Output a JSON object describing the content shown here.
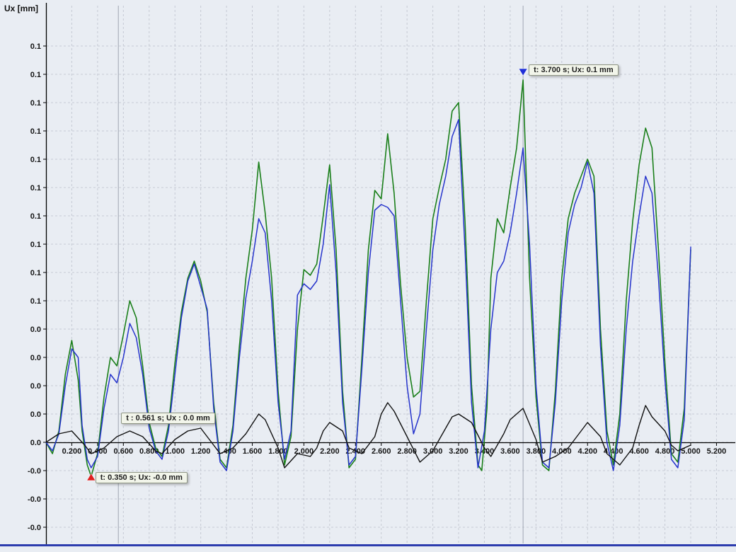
{
  "axis_title": "Ux [mm]",
  "colors": {
    "background": "#e9edf3",
    "grid": "#c6cad4",
    "cursor_line": "#9fa6b2",
    "axis": "#000000",
    "bottom_bar": "#2c3cae",
    "annotation_bg": "#f2f5ea"
  },
  "annotations": [
    {
      "text": "t: 3.700 s; Ux: 0.1 mm",
      "t": 3.7,
      "v": 0.131,
      "marker": "down",
      "marker_color": "#2030d8"
    },
    {
      "text": "t : 0.561 s; Ux : 0.0 mm",
      "t": 0.561,
      "v": 0.008,
      "marker": "none",
      "marker_color": ""
    },
    {
      "text": "t: 0.350 s; Ux: -0.0 mm",
      "t": 0.35,
      "v": -0.012,
      "marker": "up",
      "marker_color": "#e02020"
    }
  ],
  "chart_data": {
    "type": "line",
    "title": "",
    "xlabel": "",
    "ylabel": "Ux [mm]",
    "xlim": [
      0.0,
      5.35
    ],
    "ylim": [
      -0.036,
      0.149
    ],
    "grid": "dashed",
    "legend": "none",
    "cursor_lines": [
      0.561,
      3.7
    ],
    "x_ticks": {
      "values": [
        0.2,
        0.4,
        0.6,
        0.8,
        1.0,
        1.2,
        1.4,
        1.6,
        1.8,
        2.0,
        2.2,
        2.4,
        2.6,
        2.8,
        3.0,
        3.2,
        3.4,
        3.6,
        3.8,
        4.0,
        4.2,
        4.4,
        4.6,
        4.8,
        5.0,
        5.2
      ],
      "labels": [
        "0.200",
        "0.400",
        "0.600",
        "0.800",
        "1.000",
        "1.200",
        "1.400",
        "1.600",
        "1.800",
        "2.000",
        "2.200",
        "2.400",
        "2.600",
        "2.800",
        "3.000",
        "3.200",
        "3.400",
        "3.600",
        "3.800",
        "4.000",
        "4.200",
        "4.400",
        "4.600",
        "4.800",
        "5.000",
        "5.200"
      ]
    },
    "y_ticks": {
      "values": [
        0.14,
        0.13,
        0.12,
        0.11,
        0.1,
        0.09,
        0.08,
        0.07,
        0.06,
        0.05,
        0.04,
        0.03,
        0.02,
        0.01,
        0.0,
        -0.01,
        -0.02,
        -0.03
      ],
      "labels": [
        "0.1",
        "0.1",
        "0.1",
        "0.1",
        "0.1",
        "0.1",
        "0.1",
        "0.1",
        "0.1",
        "0.1",
        "0.0",
        "0.0",
        "0.0",
        "0.0",
        "0.0",
        "-0.0",
        "-0.0",
        "-0.0"
      ]
    },
    "series": [
      {
        "name": "series-green",
        "color": "#1a7f1a",
        "width": 1.6,
        "points": [
          [
            0.0,
            0.0
          ],
          [
            0.05,
            -0.004
          ],
          [
            0.1,
            0.004
          ],
          [
            0.15,
            0.024
          ],
          [
            0.2,
            0.036
          ],
          [
            0.25,
            0.022
          ],
          [
            0.28,
            0.004
          ],
          [
            0.32,
            -0.008
          ],
          [
            0.35,
            -0.012
          ],
          [
            0.4,
            -0.004
          ],
          [
            0.45,
            0.016
          ],
          [
            0.5,
            0.03
          ],
          [
            0.55,
            0.027
          ],
          [
            0.6,
            0.038
          ],
          [
            0.65,
            0.05
          ],
          [
            0.7,
            0.044
          ],
          [
            0.75,
            0.027
          ],
          [
            0.8,
            0.007
          ],
          [
            0.85,
            -0.002
          ],
          [
            0.9,
            -0.005
          ],
          [
            0.95,
            0.006
          ],
          [
            1.0,
            0.028
          ],
          [
            1.05,
            0.046
          ],
          [
            1.1,
            0.058
          ],
          [
            1.15,
            0.064
          ],
          [
            1.2,
            0.057
          ],
          [
            1.25,
            0.046
          ],
          [
            1.3,
            0.014
          ],
          [
            1.35,
            -0.006
          ],
          [
            1.4,
            -0.009
          ],
          [
            1.45,
            0.006
          ],
          [
            1.5,
            0.034
          ],
          [
            1.55,
            0.058
          ],
          [
            1.6,
            0.075
          ],
          [
            1.65,
            0.099
          ],
          [
            1.7,
            0.081
          ],
          [
            1.75,
            0.058
          ],
          [
            1.8,
            0.018
          ],
          [
            1.85,
            -0.008
          ],
          [
            1.9,
            0.002
          ],
          [
            1.95,
            0.04
          ],
          [
            2.0,
            0.061
          ],
          [
            2.05,
            0.059
          ],
          [
            2.1,
            0.063
          ],
          [
            2.15,
            0.08
          ],
          [
            2.2,
            0.098
          ],
          [
            2.25,
            0.068
          ],
          [
            2.3,
            0.018
          ],
          [
            2.35,
            -0.009
          ],
          [
            2.4,
            -0.006
          ],
          [
            2.45,
            0.03
          ],
          [
            2.5,
            0.068
          ],
          [
            2.55,
            0.089
          ],
          [
            2.6,
            0.086
          ],
          [
            2.65,
            0.109
          ],
          [
            2.7,
            0.088
          ],
          [
            2.75,
            0.056
          ],
          [
            2.8,
            0.03
          ],
          [
            2.85,
            0.016
          ],
          [
            2.9,
            0.018
          ],
          [
            2.95,
            0.05
          ],
          [
            3.0,
            0.079
          ],
          [
            3.05,
            0.09
          ],
          [
            3.1,
            0.1
          ],
          [
            3.15,
            0.117
          ],
          [
            3.2,
            0.12
          ],
          [
            3.25,
            0.078
          ],
          [
            3.3,
            0.02
          ],
          [
            3.35,
            -0.008
          ],
          [
            3.38,
            -0.01
          ],
          [
            3.42,
            0.012
          ],
          [
            3.45,
            0.058
          ],
          [
            3.5,
            0.079
          ],
          [
            3.55,
            0.074
          ],
          [
            3.6,
            0.09
          ],
          [
            3.65,
            0.104
          ],
          [
            3.7,
            0.128
          ],
          [
            3.75,
            0.058
          ],
          [
            3.8,
            0.016
          ],
          [
            3.85,
            -0.008
          ],
          [
            3.9,
            -0.01
          ],
          [
            3.95,
            0.018
          ],
          [
            4.0,
            0.058
          ],
          [
            4.05,
            0.079
          ],
          [
            4.1,
            0.088
          ],
          [
            4.15,
            0.094
          ],
          [
            4.2,
            0.1
          ],
          [
            4.25,
            0.094
          ],
          [
            4.3,
            0.04
          ],
          [
            4.35,
            0.004
          ],
          [
            4.4,
            -0.008
          ],
          [
            4.45,
            0.01
          ],
          [
            4.5,
            0.05
          ],
          [
            4.55,
            0.078
          ],
          [
            4.6,
            0.098
          ],
          [
            4.65,
            0.111
          ],
          [
            4.7,
            0.104
          ],
          [
            4.75,
            0.068
          ],
          [
            4.8,
            0.028
          ],
          [
            4.85,
            -0.004
          ],
          [
            4.9,
            -0.007
          ],
          [
            4.95,
            0.012
          ],
          [
            5.0,
            0.068
          ]
        ]
      },
      {
        "name": "series-blue",
        "color": "#2634cc",
        "width": 1.5,
        "points": [
          [
            0.0,
            0.0
          ],
          [
            0.05,
            -0.003
          ],
          [
            0.1,
            0.003
          ],
          [
            0.15,
            0.02
          ],
          [
            0.2,
            0.033
          ],
          [
            0.25,
            0.03
          ],
          [
            0.28,
            0.006
          ],
          [
            0.32,
            -0.006
          ],
          [
            0.35,
            -0.009
          ],
          [
            0.4,
            -0.005
          ],
          [
            0.45,
            0.012
          ],
          [
            0.5,
            0.024
          ],
          [
            0.55,
            0.021
          ],
          [
            0.6,
            0.03
          ],
          [
            0.65,
            0.042
          ],
          [
            0.7,
            0.037
          ],
          [
            0.75,
            0.024
          ],
          [
            0.8,
            0.005
          ],
          [
            0.85,
            -0.003
          ],
          [
            0.9,
            -0.006
          ],
          [
            0.95,
            0.004
          ],
          [
            1.0,
            0.024
          ],
          [
            1.05,
            0.044
          ],
          [
            1.1,
            0.057
          ],
          [
            1.15,
            0.063
          ],
          [
            1.2,
            0.055
          ],
          [
            1.25,
            0.047
          ],
          [
            1.3,
            0.012
          ],
          [
            1.35,
            -0.007
          ],
          [
            1.4,
            -0.01
          ],
          [
            1.45,
            0.004
          ],
          [
            1.5,
            0.03
          ],
          [
            1.55,
            0.051
          ],
          [
            1.6,
            0.064
          ],
          [
            1.65,
            0.079
          ],
          [
            1.7,
            0.074
          ],
          [
            1.75,
            0.05
          ],
          [
            1.8,
            0.014
          ],
          [
            1.85,
            -0.006
          ],
          [
            1.9,
            0.004
          ],
          [
            1.95,
            0.052
          ],
          [
            2.0,
            0.056
          ],
          [
            2.05,
            0.054
          ],
          [
            2.1,
            0.057
          ],
          [
            2.15,
            0.07
          ],
          [
            2.2,
            0.091
          ],
          [
            2.25,
            0.06
          ],
          [
            2.3,
            0.014
          ],
          [
            2.35,
            -0.008
          ],
          [
            2.4,
            -0.005
          ],
          [
            2.45,
            0.026
          ],
          [
            2.5,
            0.06
          ],
          [
            2.55,
            0.082
          ],
          [
            2.6,
            0.084
          ],
          [
            2.65,
            0.083
          ],
          [
            2.7,
            0.08
          ],
          [
            2.75,
            0.05
          ],
          [
            2.8,
            0.02
          ],
          [
            2.85,
            0.003
          ],
          [
            2.9,
            0.01
          ],
          [
            2.95,
            0.04
          ],
          [
            3.0,
            0.068
          ],
          [
            3.05,
            0.084
          ],
          [
            3.1,
            0.094
          ],
          [
            3.15,
            0.108
          ],
          [
            3.2,
            0.114
          ],
          [
            3.25,
            0.068
          ],
          [
            3.3,
            0.014
          ],
          [
            3.35,
            -0.009
          ],
          [
            3.4,
            0.004
          ],
          [
            3.45,
            0.04
          ],
          [
            3.5,
            0.06
          ],
          [
            3.55,
            0.064
          ],
          [
            3.6,
            0.074
          ],
          [
            3.65,
            0.088
          ],
          [
            3.7,
            0.104
          ],
          [
            3.75,
            0.07
          ],
          [
            3.8,
            0.02
          ],
          [
            3.85,
            -0.007
          ],
          [
            3.9,
            -0.009
          ],
          [
            3.95,
            0.014
          ],
          [
            4.0,
            0.05
          ],
          [
            4.05,
            0.074
          ],
          [
            4.1,
            0.084
          ],
          [
            4.15,
            0.09
          ],
          [
            4.2,
            0.099
          ],
          [
            4.25,
            0.088
          ],
          [
            4.3,
            0.034
          ],
          [
            4.35,
            0.0
          ],
          [
            4.4,
            -0.01
          ],
          [
            4.45,
            0.006
          ],
          [
            4.5,
            0.04
          ],
          [
            4.55,
            0.064
          ],
          [
            4.6,
            0.08
          ],
          [
            4.65,
            0.094
          ],
          [
            4.7,
            0.088
          ],
          [
            4.75,
            0.058
          ],
          [
            4.8,
            0.022
          ],
          [
            4.85,
            -0.006
          ],
          [
            4.9,
            -0.009
          ],
          [
            4.95,
            0.008
          ],
          [
            5.0,
            0.069
          ]
        ]
      },
      {
        "name": "series-black",
        "color": "#101010",
        "width": 1.4,
        "points": [
          [
            0.0,
            0.0
          ],
          [
            0.1,
            0.003
          ],
          [
            0.2,
            0.004
          ],
          [
            0.3,
            -0.001
          ],
          [
            0.35,
            -0.004
          ],
          [
            0.45,
            -0.002
          ],
          [
            0.55,
            0.002
          ],
          [
            0.65,
            0.004
          ],
          [
            0.75,
            0.002
          ],
          [
            0.85,
            -0.003
          ],
          [
            0.9,
            -0.004
          ],
          [
            1.0,
            0.001
          ],
          [
            1.1,
            0.004
          ],
          [
            1.2,
            0.005
          ],
          [
            1.3,
            -0.001
          ],
          [
            1.35,
            -0.004
          ],
          [
            1.45,
            -0.002
          ],
          [
            1.55,
            0.003
          ],
          [
            1.65,
            0.01
          ],
          [
            1.7,
            0.008
          ],
          [
            1.8,
            -0.002
          ],
          [
            1.85,
            -0.009
          ],
          [
            1.95,
            -0.004
          ],
          [
            2.05,
            -0.005
          ],
          [
            2.1,
            -0.002
          ],
          [
            2.15,
            0.004
          ],
          [
            2.2,
            0.007
          ],
          [
            2.3,
            0.004
          ],
          [
            2.35,
            -0.002
          ],
          [
            2.45,
            -0.004
          ],
          [
            2.55,
            0.002
          ],
          [
            2.6,
            0.01
          ],
          [
            2.65,
            0.014
          ],
          [
            2.7,
            0.011
          ],
          [
            2.8,
            0.002
          ],
          [
            2.9,
            -0.007
          ],
          [
            3.0,
            -0.003
          ],
          [
            3.1,
            0.005
          ],
          [
            3.15,
            0.009
          ],
          [
            3.2,
            0.01
          ],
          [
            3.3,
            0.007
          ],
          [
            3.4,
            -0.002
          ],
          [
            3.45,
            -0.005
          ],
          [
            3.55,
            0.003
          ],
          [
            3.6,
            0.008
          ],
          [
            3.7,
            0.012
          ],
          [
            3.8,
            0.001
          ],
          [
            3.85,
            -0.007
          ],
          [
            3.95,
            -0.005
          ],
          [
            4.05,
            -0.002
          ],
          [
            4.15,
            0.004
          ],
          [
            4.2,
            0.007
          ],
          [
            4.3,
            0.002
          ],
          [
            4.35,
            -0.004
          ],
          [
            4.45,
            -0.008
          ],
          [
            4.55,
            -0.002
          ],
          [
            4.6,
            0.006
          ],
          [
            4.65,
            0.013
          ],
          [
            4.7,
            0.009
          ],
          [
            4.8,
            0.004
          ],
          [
            4.85,
            -0.001
          ],
          [
            4.9,
            -0.003
          ],
          [
            5.0,
            -0.001
          ]
        ]
      }
    ]
  }
}
